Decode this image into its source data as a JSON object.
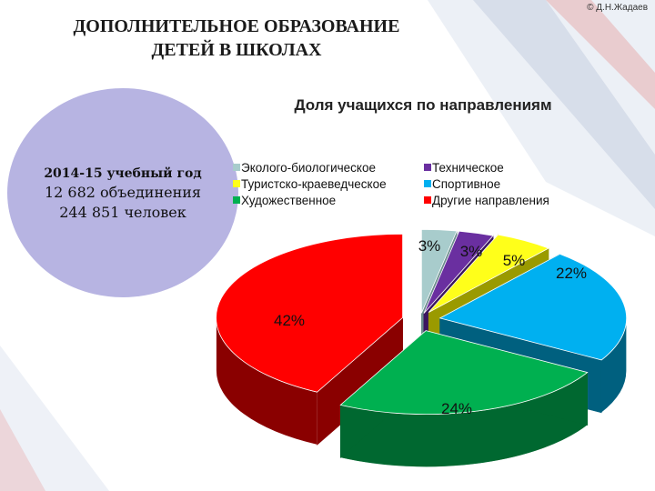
{
  "header": {
    "title_line1": "ДОПОЛНИТЕЛЬНОЕ ОБРАЗОВАНИЕ",
    "title_line2": "ДЕТЕЙ В ШКОЛАХ",
    "copyright": "© Д.Н.Жадаев"
  },
  "info": {
    "year": "2014-15 учебный год",
    "associations": "12 682 объединения",
    "people": "244 851 человек"
  },
  "chart_data": {
    "type": "pie",
    "title": "Доля учащихся по направлениям",
    "legend_position": "top",
    "categories": [
      "Эколого-биологическое",
      "Техническое",
      "Туристско-краеведческое",
      "Спортивное",
      "Художественное",
      "Другие направления"
    ],
    "series": [
      {
        "values": [
          3,
          3,
          5,
          22,
          24,
          42
        ],
        "labels": [
          "3%",
          "3%",
          "5%",
          "22%",
          "24%",
          "42%"
        ]
      }
    ],
    "colors": [
      "#a8cccc",
      "#6a2fa0",
      "#ffff1a",
      "#00b0f0",
      "#00b050",
      "#ff0000"
    ],
    "side_colors": [
      "#6b8e8e",
      "#3b1660",
      "#9a9a00",
      "#00607f",
      "#006830",
      "#8a0000"
    ]
  }
}
